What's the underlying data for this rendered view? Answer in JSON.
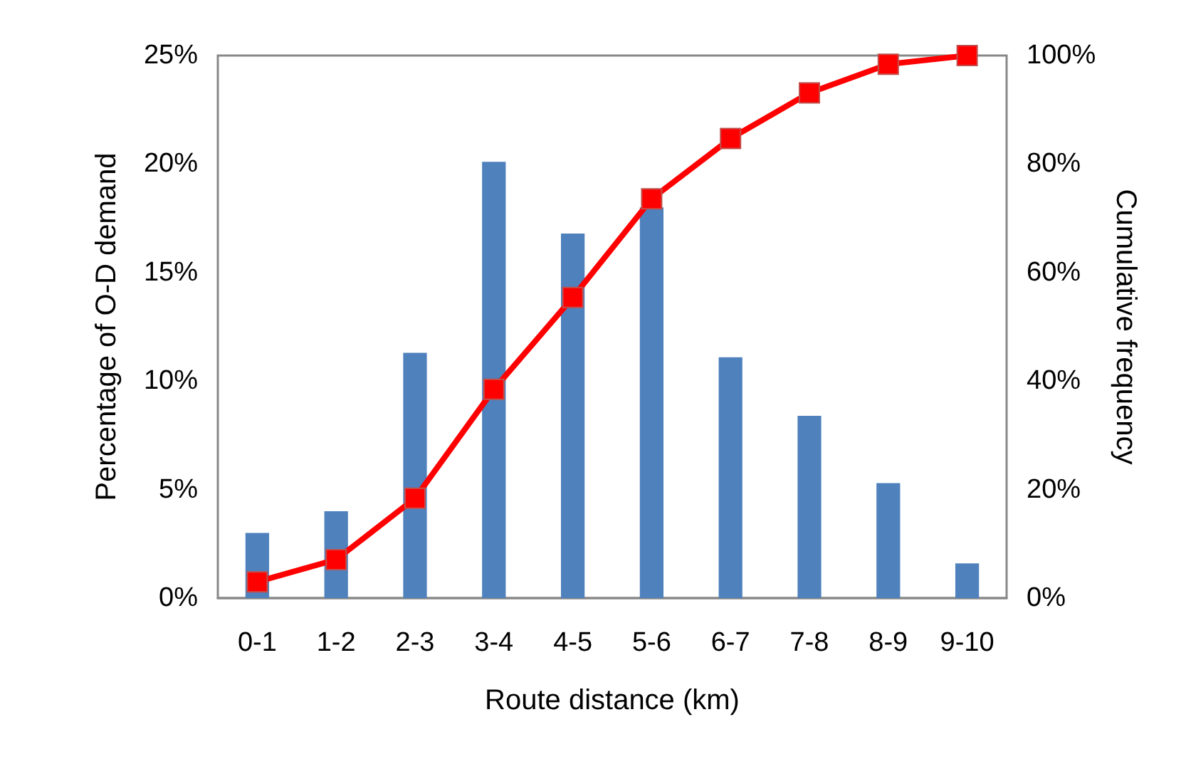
{
  "chart_data": {
    "type": "bar",
    "xlabel": "Route distance (km)",
    "ylabel": "Percentage of O-D demand",
    "y2label": "Cumulative frequency",
    "categories": [
      "0-1",
      "1-2",
      "2-3",
      "3-4",
      "4-5",
      "5-6",
      "6-7",
      "7-8",
      "8-9",
      "9-10"
    ],
    "series": [
      {
        "color": "#4f81bd",
        "values": [
          3.0,
          4.0,
          11.3,
          20.1,
          16.8,
          18.0,
          11.1,
          8.4,
          5.3,
          1.6
        ]
      },
      {
        "type": "line",
        "axis": "y2",
        "color": "#ff0000",
        "marker": "square",
        "values": [
          3.0,
          7.1,
          18.4,
          38.5,
          55.4,
          73.6,
          84.7,
          93.1,
          98.4,
          100
        ]
      }
    ],
    "ylim": [
      0,
      25
    ],
    "yticks": [
      {
        "value": 0,
        "label": "0%"
      },
      {
        "value": 5,
        "label": "5%"
      },
      {
        "value": 10,
        "label": "10%"
      },
      {
        "value": 15,
        "label": "15%"
      },
      {
        "value": 20,
        "label": "20%"
      },
      {
        "value": 25,
        "label": "25%"
      }
    ],
    "y2lim": [
      0,
      100
    ],
    "y2ticks": [
      {
        "value": 0,
        "label": "0%"
      },
      {
        "value": 20,
        "label": "20%"
      },
      {
        "value": 40,
        "label": "40%"
      },
      {
        "value": 60,
        "label": "60%"
      },
      {
        "value": 80,
        "label": "80%"
      },
      {
        "value": 100,
        "label": "100%"
      }
    ],
    "grid": false
  }
}
